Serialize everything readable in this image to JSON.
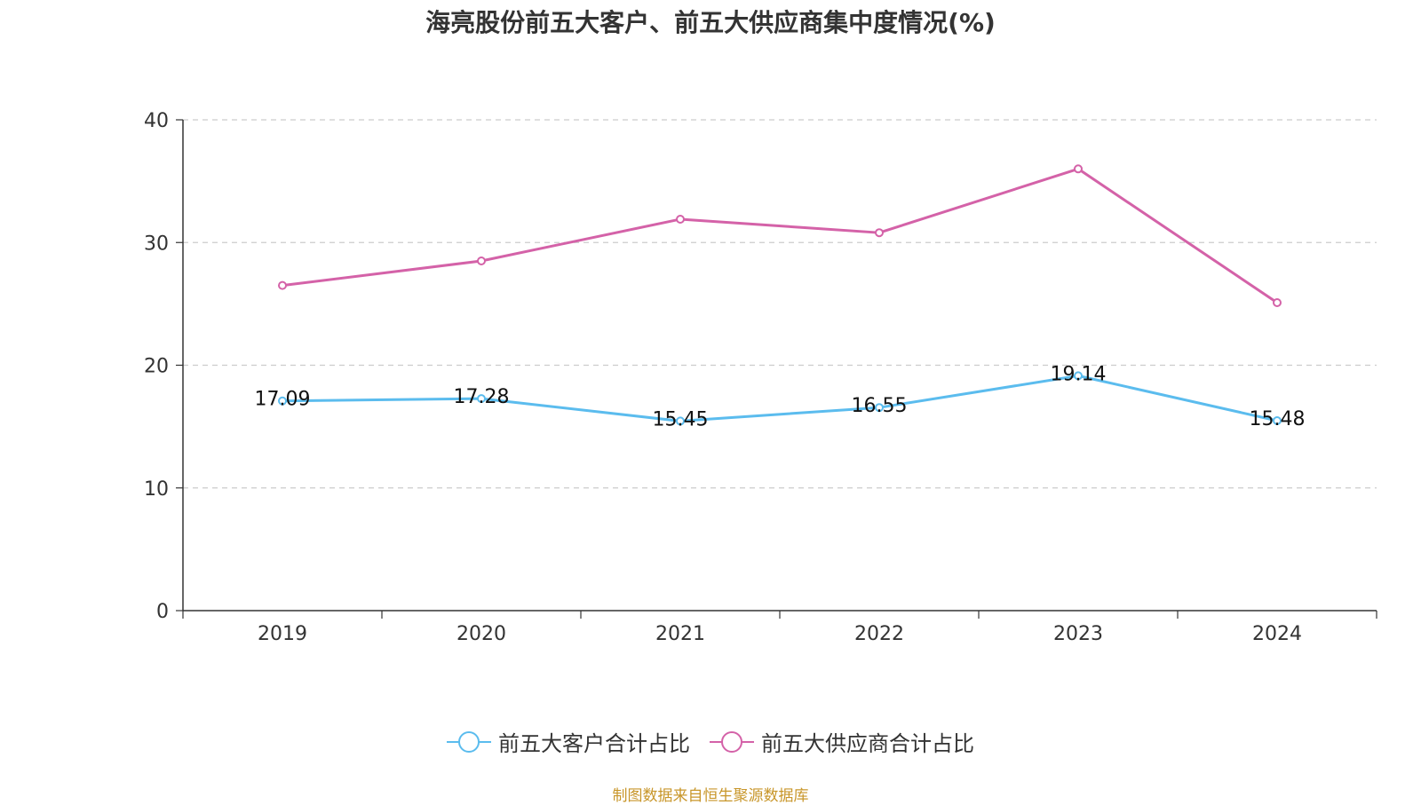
{
  "chart_data": {
    "type": "line",
    "title": "海亮股份前五大客户、前五大供应商集中度情况(%)",
    "categories": [
      "2019",
      "2020",
      "2021",
      "2022",
      "2023",
      "2024"
    ],
    "ylim": [
      0,
      40
    ],
    "yticks": [
      0,
      10,
      20,
      30,
      40
    ],
    "grid": true,
    "legend_position": "bottom",
    "series": [
      {
        "name": "前五大客户合计占比",
        "color": "#5bbcee",
        "values": [
          17.09,
          17.28,
          15.45,
          16.55,
          19.14,
          15.48
        ],
        "data_labels": [
          "17.09",
          "17.28",
          "15.45",
          "16.55",
          "19.14",
          "15.48"
        ]
      },
      {
        "name": "前五大供应商合计占比",
        "color": "#d462a8",
        "values": [
          26.5,
          28.5,
          31.9,
          30.8,
          36.0,
          25.1
        ],
        "data_labels": []
      }
    ],
    "source": "制图数据来自恒生聚源数据库"
  }
}
